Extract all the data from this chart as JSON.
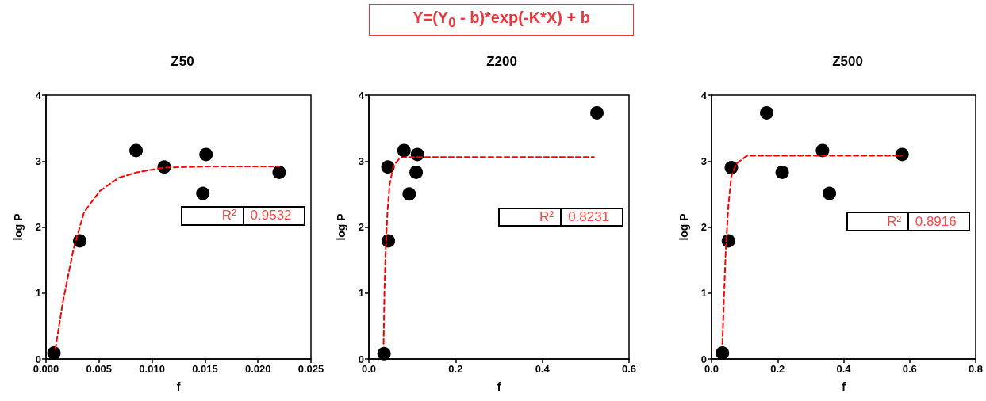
{
  "chart_data": [
    {
      "type": "other",
      "title": "Y=(Y$_{0}$ - b)*exp(-K*X) + b"
    },
    {
      "type": "scatter",
      "title": "Z50",
      "xlabel": "f",
      "ylabel": "log P",
      "annotations": [
        "R²",
        "0.9532"
      ],
      "xlim": [
        0,
        0.025
      ],
      "xticks": [
        {
          "value": 0,
          "label": "0.000"
        },
        {
          "value": 0.005,
          "label": "0.005"
        },
        {
          "value": 0.01,
          "label": "0.010"
        },
        {
          "value": 0.015,
          "label": "0.015"
        },
        {
          "value": 0.02,
          "label": "0.020"
        },
        {
          "value": 0.025,
          "label": "0.025"
        }
      ],
      "ylim": [
        0,
        4
      ],
      "yticks": [
        0,
        1,
        2,
        3,
        4
      ],
      "grid": false,
      "series": [
        {
          "type": "scatter",
          "color": "#000000",
          "marker": "circle",
          "x": [
            0.00075,
            0.00318,
            0.0085,
            0.01115,
            0.0148,
            0.0151,
            0.022
          ],
          "values": [
            0.09,
            1.79,
            3.16,
            2.91,
            2.51,
            3.1,
            2.83
          ]
        },
        {
          "type": "line",
          "color": "#ff0000",
          "marker": "none",
          "line_style": "dashed",
          "x": [
            0.00088,
            0.0016,
            0.0026,
            0.0036,
            0.0051,
            0.0069,
            0.0086,
            0.0111,
            0.0156,
            0.022
          ],
          "values": [
            0.15,
            0.87,
            1.67,
            2.23,
            2.55,
            2.75,
            2.83,
            2.9,
            2.92,
            2.92
          ]
        }
      ]
    },
    {
      "type": "scatter",
      "title": "Z200",
      "xlabel": "f",
      "ylabel": "log P",
      "annotations": [
        "R²",
        "0.8231"
      ],
      "xlim": [
        0,
        0.6
      ],
      "xticks": [
        {
          "value": 0,
          "label": "0.0"
        },
        {
          "value": 0.2,
          "label": "0.2"
        },
        {
          "value": 0.4,
          "label": "0.4"
        },
        {
          "value": 0.6,
          "label": "0.6"
        }
      ],
      "ylim": [
        0,
        4
      ],
      "yticks": [
        0,
        1,
        2,
        3,
        4
      ],
      "grid": false,
      "series": [
        {
          "type": "scatter",
          "color": "#000000",
          "marker": "circle",
          "x": [
            0.035,
            0.045,
            0.044,
            0.081,
            0.112,
            0.109,
            0.093,
            0.526
          ],
          "values": [
            0.08,
            1.79,
            2.91,
            3.16,
            3.1,
            2.83,
            2.5,
            3.73
          ]
        },
        {
          "type": "line",
          "color": "#ff0000",
          "marker": "none",
          "line_style": "dashed",
          "x": [
            0.034,
            0.036,
            0.039,
            0.043,
            0.048,
            0.057,
            0.072,
            0.096,
            0.519
          ],
          "values": [
            0.23,
            1.04,
            1.68,
            2.24,
            2.65,
            2.93,
            3.05,
            3.06,
            3.06
          ]
        }
      ]
    },
    {
      "type": "scatter",
      "title": "Z500",
      "xlabel": "f",
      "ylabel": "log P",
      "annotations": [
        "R²",
        "0.8916"
      ],
      "xlim": [
        0,
        0.8
      ],
      "xticks": [
        {
          "value": 0,
          "label": "0.0"
        },
        {
          "value": 0.2,
          "label": "0.2"
        },
        {
          "value": 0.4,
          "label": "0.4"
        },
        {
          "value": 0.6,
          "label": "0.6"
        },
        {
          "value": 0.8,
          "label": "0.8"
        }
      ],
      "ylim": [
        0,
        4
      ],
      "yticks": [
        0,
        1,
        2,
        3,
        4
      ],
      "grid": false,
      "series": [
        {
          "type": "scatter",
          "color": "#000000",
          "marker": "circle",
          "x": [
            0.033,
            0.051,
            0.06,
            0.167,
            0.214,
            0.336,
            0.357,
            0.577
          ],
          "values": [
            0.09,
            1.79,
            2.9,
            3.73,
            2.83,
            3.16,
            2.51,
            3.1
          ]
        },
        {
          "type": "line",
          "color": "#ff0000",
          "marker": "none",
          "line_style": "dashed",
          "x": [
            0.033,
            0.037,
            0.043,
            0.051,
            0.06,
            0.075,
            0.107,
            0.171,
            0.577
          ],
          "values": [
            0.23,
            0.84,
            1.64,
            2.32,
            2.77,
            2.96,
            3.08,
            3.08,
            3.08
          ]
        }
      ]
    }
  ]
}
